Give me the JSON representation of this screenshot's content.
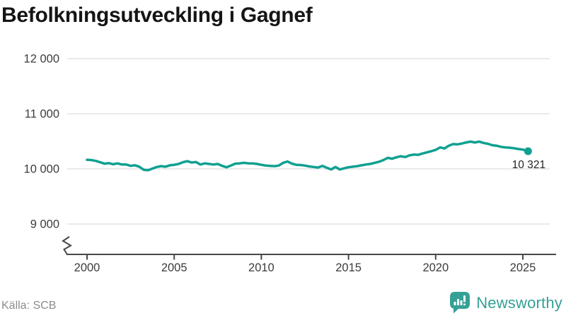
{
  "title": "Befolkningsutveckling i Gagnef",
  "source": "Källa: SCB",
  "brand": {
    "name": "Newsworthy",
    "color": "#35a096"
  },
  "colors": {
    "line": "#10a091",
    "grid": "#e3e3e3",
    "axis": "#474747",
    "title_text": "#151515",
    "tick_text": "#3c3c3c",
    "source_text": "#8c8c8c"
  },
  "chart_data": {
    "type": "line",
    "title": "Befolkningsutveckling i Gagnef",
    "xlabel": "",
    "ylabel": "",
    "legend": null,
    "grid": "horizontal",
    "axis_break_below": 9000,
    "ylim": [
      9000,
      12000
    ],
    "xlim": [
      2000,
      2025.5
    ],
    "y_ticks": [
      {
        "value": 12000,
        "label": "12 000"
      },
      {
        "value": 11000,
        "label": "11 000"
      },
      {
        "value": 10000,
        "label": "10 000"
      },
      {
        "value": 9000,
        "label": "9 000"
      }
    ],
    "x_ticks": [
      {
        "value": 2000,
        "label": "2000"
      },
      {
        "value": 2005,
        "label": "2005"
      },
      {
        "value": 2010,
        "label": "2010"
      },
      {
        "value": 2015,
        "label": "2015"
      },
      {
        "value": 2020,
        "label": "2020"
      },
      {
        "value": 2025,
        "label": "2025"
      }
    ],
    "last_value": 10321,
    "last_value_label": "10 321",
    "series": [
      {
        "name": "Befolkning i Gagnef",
        "points": [
          [
            2000.0,
            10165
          ],
          [
            2000.25,
            10160
          ],
          [
            2000.5,
            10145
          ],
          [
            2000.75,
            10120
          ],
          [
            2001.0,
            10095
          ],
          [
            2001.25,
            10105
          ],
          [
            2001.5,
            10085
          ],
          [
            2001.75,
            10100
          ],
          [
            2002.0,
            10080
          ],
          [
            2002.25,
            10080
          ],
          [
            2002.5,
            10055
          ],
          [
            2002.75,
            10065
          ],
          [
            2003.0,
            10040
          ],
          [
            2003.25,
            9985
          ],
          [
            2003.5,
            9975
          ],
          [
            2003.75,
            10005
          ],
          [
            2004.0,
            10035
          ],
          [
            2004.25,
            10050
          ],
          [
            2004.5,
            10040
          ],
          [
            2004.75,
            10065
          ],
          [
            2005.0,
            10075
          ],
          [
            2005.25,
            10090
          ],
          [
            2005.5,
            10120
          ],
          [
            2005.75,
            10140
          ],
          [
            2006.0,
            10115
          ],
          [
            2006.25,
            10125
          ],
          [
            2006.5,
            10080
          ],
          [
            2006.75,
            10100
          ],
          [
            2007.0,
            10090
          ],
          [
            2007.25,
            10080
          ],
          [
            2007.5,
            10090
          ],
          [
            2007.75,
            10055
          ],
          [
            2008.0,
            10030
          ],
          [
            2008.25,
            10060
          ],
          [
            2008.5,
            10095
          ],
          [
            2008.75,
            10100
          ],
          [
            2009.0,
            10110
          ],
          [
            2009.25,
            10100
          ],
          [
            2009.5,
            10100
          ],
          [
            2009.75,
            10090
          ],
          [
            2010.0,
            10075
          ],
          [
            2010.25,
            10060
          ],
          [
            2010.5,
            10055
          ],
          [
            2010.75,
            10050
          ],
          [
            2011.0,
            10060
          ],
          [
            2011.25,
            10110
          ],
          [
            2011.5,
            10135
          ],
          [
            2011.75,
            10095
          ],
          [
            2012.0,
            10075
          ],
          [
            2012.25,
            10070
          ],
          [
            2012.5,
            10060
          ],
          [
            2012.75,
            10045
          ],
          [
            2013.0,
            10035
          ],
          [
            2013.25,
            10025
          ],
          [
            2013.5,
            10055
          ],
          [
            2013.75,
            10020
          ],
          [
            2014.0,
            9990
          ],
          [
            2014.25,
            10035
          ],
          [
            2014.5,
            9990
          ],
          [
            2014.75,
            10010
          ],
          [
            2015.0,
            10030
          ],
          [
            2015.25,
            10040
          ],
          [
            2015.5,
            10050
          ],
          [
            2015.75,
            10065
          ],
          [
            2016.0,
            10080
          ],
          [
            2016.25,
            10090
          ],
          [
            2016.5,
            10110
          ],
          [
            2016.75,
            10130
          ],
          [
            2017.0,
            10160
          ],
          [
            2017.25,
            10200
          ],
          [
            2017.5,
            10185
          ],
          [
            2017.75,
            10210
          ],
          [
            2018.0,
            10230
          ],
          [
            2018.25,
            10215
          ],
          [
            2018.5,
            10245
          ],
          [
            2018.75,
            10260
          ],
          [
            2019.0,
            10255
          ],
          [
            2019.25,
            10280
          ],
          [
            2019.5,
            10300
          ],
          [
            2019.75,
            10320
          ],
          [
            2020.0,
            10345
          ],
          [
            2020.25,
            10390
          ],
          [
            2020.5,
            10370
          ],
          [
            2020.75,
            10420
          ],
          [
            2021.0,
            10450
          ],
          [
            2021.25,
            10445
          ],
          [
            2021.5,
            10460
          ],
          [
            2021.75,
            10480
          ],
          [
            2022.0,
            10495
          ],
          [
            2022.25,
            10480
          ],
          [
            2022.5,
            10495
          ],
          [
            2022.75,
            10470
          ],
          [
            2023.0,
            10455
          ],
          [
            2023.25,
            10430
          ],
          [
            2023.5,
            10420
          ],
          [
            2023.75,
            10400
          ],
          [
            2024.0,
            10390
          ],
          [
            2024.25,
            10385
          ],
          [
            2024.5,
            10375
          ],
          [
            2024.75,
            10360
          ],
          [
            2025.0,
            10350
          ],
          [
            2025.3,
            10321
          ]
        ]
      }
    ]
  }
}
